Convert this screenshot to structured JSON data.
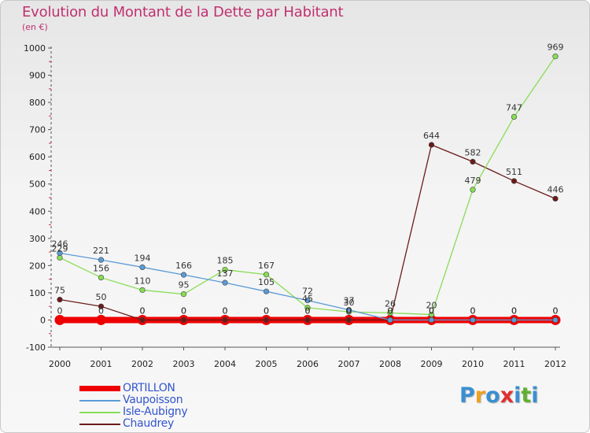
{
  "header": {
    "title": "Evolution du Montant de la Dette par Habitant",
    "unit": "(en €)"
  },
  "logo": {
    "text": "Proxiti",
    "colors": [
      "#3a8fd0",
      "#f0a020",
      "#3a8fd0",
      "#e03030",
      "#3a8fd0",
      "#60b030",
      "#3a8fd0"
    ]
  },
  "chart_data": {
    "type": "line",
    "title": "Evolution du Montant de la Dette par Habitant",
    "subtitle": "(en €)",
    "xlabel": "",
    "ylabel": "",
    "x": [
      "2000",
      "2001",
      "2002",
      "2003",
      "2004",
      "2005",
      "2006",
      "2007",
      "2008",
      "2009",
      "2010",
      "2011",
      "2012"
    ],
    "y_ticks": [
      -100,
      0,
      100,
      200,
      300,
      400,
      500,
      600,
      700,
      800,
      900,
      1000
    ],
    "ylim": [
      -100,
      1000
    ],
    "grid": false,
    "legend_position": "bottom-left",
    "series": [
      {
        "name": "ORTILLON",
        "color": "#ee0000",
        "values": [
          0,
          0,
          0,
          0,
          0,
          0,
          0,
          0,
          0,
          0,
          0,
          0,
          0
        ],
        "labels": [
          "0",
          "0",
          "0",
          "0",
          "0",
          "0",
          "0",
          "0",
          "0",
          "0",
          "0",
          "0",
          "0"
        ]
      },
      {
        "name": "Vaupoisson",
        "color": "#5b9bd5",
        "values": [
          246,
          221,
          194,
          166,
          137,
          105,
          72,
          37,
          0,
          0,
          0,
          0,
          0
        ],
        "labels": [
          "246",
          "221",
          "194",
          "166",
          "137",
          "105",
          "72",
          "37",
          "0",
          "0",
          "0",
          "0",
          "0"
        ]
      },
      {
        "name": "Isle-Aubigny",
        "color": "#88dd55",
        "values": [
          229,
          156,
          110,
          95,
          185,
          167,
          45,
          30,
          26,
          20,
          479,
          747,
          969
        ],
        "labels": [
          "229",
          "156",
          "110",
          "95",
          "185",
          "167",
          "45",
          "30",
          "26",
          "20",
          "479",
          "747",
          "969"
        ]
      },
      {
        "name": "Chaudrey",
        "color": "#6b1a1a",
        "values": [
          75,
          50,
          0,
          0,
          0,
          0,
          0,
          0,
          0,
          644,
          582,
          511,
          446
        ],
        "labels": [
          "75",
          "50",
          "0",
          "0",
          "0",
          "0",
          "0",
          "0",
          "0",
          "644",
          "582",
          "511",
          "446"
        ]
      }
    ]
  }
}
